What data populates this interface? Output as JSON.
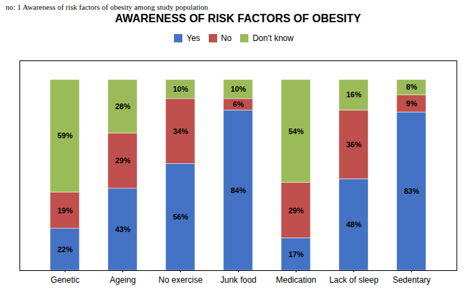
{
  "chart_data": {
    "type": "bar",
    "stacked": true,
    "title": "AWARENESS OF RISK FACTORS OF OBESITY",
    "subtitle": "no: 1 Awareness of risk factors of obesity among study population",
    "categories": [
      "Genetic",
      "Ageing",
      "No exercise",
      "Junk food",
      "Medication",
      "Lack of sleep",
      "Sedentary"
    ],
    "series": [
      {
        "name": "Yes",
        "color": "#4472C4",
        "values": [
          22,
          43,
          56,
          84,
          17,
          48,
          83
        ],
        "value_labels": [
          "22%",
          "43%",
          "56%",
          "84%",
          "17%",
          "48%",
          "83%"
        ]
      },
      {
        "name": "No",
        "color": "#C0504D",
        "values": [
          19,
          29,
          34,
          6,
          29,
          36,
          9
        ],
        "value_labels": [
          "19%",
          "29%",
          "34%",
          "6%",
          "29%",
          "36%",
          "9%"
        ]
      },
      {
        "name": "Don't know",
        "color": "#9BBB59",
        "values": [
          59,
          28,
          10,
          10,
          54,
          16,
          8
        ],
        "value_labels": [
          "59%",
          "28%",
          "10%",
          "10%",
          "54%",
          "16%",
          "8%"
        ]
      }
    ],
    "ylim": [
      0,
      110
    ],
    "data_labels": true,
    "tick_labels": "x",
    "legend": "top",
    "grid": false
  }
}
